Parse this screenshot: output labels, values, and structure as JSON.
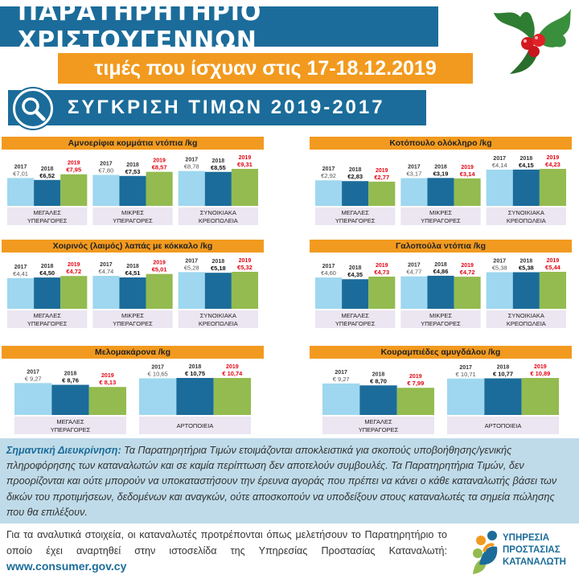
{
  "header": {
    "title": "ΠΑΡΑΤΗΡΗΤΗΡΙΟ ΧΡΙΣΤΟΥΓΕΝΝΩΝ",
    "date": "τιμές που ίσχυαν στις 17-18.12.2019",
    "compare": "ΣΥΓΚΡΙΣΗ ΤΙΜΩΝ 2019-2017"
  },
  "colors": {
    "y2017": "#9ed7ef",
    "y2018": "#1b6c9a",
    "y2019": "#93bb4f",
    "red": "#e30613",
    "orange": "#f29a1f",
    "blue": "#1b6c9a"
  },
  "chart_data": [
    {
      "type": "bar",
      "title": "Αμνοερίφια κομμάτια ντόπια /kg",
      "years": [
        "2017",
        "2018",
        "2019"
      ],
      "groups": [
        {
          "label1": "ΜΕΓΑΛΕΣ",
          "label2": "ΥΠΕΡΑΓΟΡΕΣ",
          "values": [
            7.01,
            6.52,
            7.95
          ],
          "labels": [
            "€7,01",
            "€6,52",
            "€7,95"
          ]
        },
        {
          "label1": "ΜΙΚΡΕΣ",
          "label2": "ΥΠΕΡΑΓΟΡΕΣ",
          "values": [
            7.8,
            7.53,
            8.57
          ],
          "labels": [
            "€7,80",
            "€7,53",
            "€8,57"
          ]
        },
        {
          "label1": "ΣΥΝΟΙΚΙΑΚΑ",
          "label2": "ΚΡΕΟΠΩΛΕΙΑ",
          "values": [
            8.78,
            8.55,
            9.31
          ],
          "labels": [
            "€8,78",
            "€8,55",
            "€9,31"
          ]
        }
      ]
    },
    {
      "type": "bar",
      "title": "Κοτόπουλο ολόκληρο /kg",
      "years": [
        "2017",
        "2018",
        "2019"
      ],
      "groups": [
        {
          "label1": "ΜΕΓΑΛΕΣ",
          "label2": "ΥΠΕΡΑΓΟΡΕΣ",
          "values": [
            2.92,
            2.83,
            2.77
          ],
          "labels": [
            "€2,92",
            "€2,83",
            "€2,77"
          ]
        },
        {
          "label1": "ΜΙΚΡΕΣ",
          "label2": "ΥΠΕΡΑΓΟΡΕΣ",
          "values": [
            3.17,
            3.19,
            3.14
          ],
          "labels": [
            "€3,17",
            "€3,19",
            "€3,14"
          ]
        },
        {
          "label1": "ΣΥΝΟΙΚΙΑΚΑ",
          "label2": "ΚΡΕΟΠΩΛΕΙΑ",
          "values": [
            4.14,
            4.15,
            4.23
          ],
          "labels": [
            "€4,14",
            "€4,15",
            "€4,23"
          ]
        }
      ]
    },
    {
      "type": "bar",
      "title": "Χοιρινός (λαιμός) λαπάς με κόκκαλο /kg",
      "years": [
        "2017",
        "2018",
        "2019"
      ],
      "groups": [
        {
          "label1": "ΜΕΓΑΛΕΣ",
          "label2": "ΥΠΕΡΑΓΟΡΕΣ",
          "values": [
            4.41,
            4.5,
            4.72
          ],
          "labels": [
            "€4,41",
            "€4,50",
            "€4,72"
          ]
        },
        {
          "label1": "ΜΙΚΡΕΣ",
          "label2": "ΥΠΕΡΑΓΟΡΕΣ",
          "values": [
            4.74,
            4.51,
            5.01
          ],
          "labels": [
            "€4,74",
            "€4,51",
            "€5,01"
          ]
        },
        {
          "label1": "ΣΥΝΟΙΚΙΑΚΑ",
          "label2": "ΚΡΕΟΠΩΛΕΙΑ",
          "values": [
            5.28,
            5.18,
            5.32
          ],
          "labels": [
            "€5,28",
            "€5,18",
            "€5,32"
          ]
        }
      ]
    },
    {
      "type": "bar",
      "title": "Γαλοπούλα ντόπια /kg",
      "years": [
        "2017",
        "2018",
        "2019"
      ],
      "groups": [
        {
          "label1": "ΜΕΓΑΛΕΣ",
          "label2": "ΥΠΕΡΑΓΟΡΕΣ",
          "values": [
            4.6,
            4.35,
            4.73
          ],
          "labels": [
            "€4,60",
            "€4,35",
            "€4,73"
          ]
        },
        {
          "label1": "ΜΙΚΡΕΣ",
          "label2": "ΥΠΕΡΑΓΟΡΕΣ",
          "values": [
            4.77,
            4.86,
            4.72
          ],
          "labels": [
            "€4,77",
            "€4,86",
            "€4,72"
          ]
        },
        {
          "label1": "ΣΥΝΟΙΚΙΑΚΑ",
          "label2": "ΚΡΕΟΠΩΛΕΙΑ",
          "values": [
            5.38,
            5.38,
            5.44
          ],
          "labels": [
            "€5,38",
            "€5,38",
            "€5,44"
          ]
        }
      ]
    },
    {
      "type": "bar",
      "title": "Μελομακάρονα /kg",
      "years": [
        "2017",
        "2018",
        "2019"
      ],
      "groups": [
        {
          "label1": "ΜΕΓΑΛΕΣ",
          "label2": "ΥΠΕΡΑΓΟΡΕΣ",
          "values": [
            9.27,
            8.76,
            8.13
          ],
          "labels": [
            "€ 9,27",
            "€ 8,76",
            "€ 8,13"
          ]
        },
        {
          "label1": "ΑΡΤΟΠΟΙΕΙΑ",
          "label2": "",
          "values": [
            10.65,
            10.75,
            10.74
          ],
          "labels": [
            "€ 10,65",
            "€ 10,75",
            "€ 10,74"
          ]
        }
      ]
    },
    {
      "type": "bar",
      "title": "Κουραμπιέδες αμυγδάλου /kg",
      "years": [
        "2017",
        "2018",
        "2019"
      ],
      "groups": [
        {
          "label1": "ΜΕΓΑΛΕΣ",
          "label2": "ΥΠΕΡΑΓΟΡΕΣ",
          "values": [
            9.27,
            8.7,
            7.99
          ],
          "labels": [
            "€ 9,27",
            "€ 8,70",
            "€ 7,99"
          ]
        },
        {
          "label1": "ΑΡΤΟΠΟΙΕΙΑ",
          "label2": "",
          "values": [
            10.71,
            10.77,
            10.89
          ],
          "labels": [
            "€ 10,71",
            "€ 10,77",
            "€ 10,89"
          ]
        }
      ]
    }
  ],
  "note": {
    "label": "Σημαντική Διευκρίνηση:",
    "text": "Τα Παρατηρητήρια Τιμών ετοιμάζονται αποκλειστικά για σκοπούς υποβοήθησης/γενικής πληροφόρησης των καταναλωτών και σε καμία περίπτωση δεν αποτελούν συμβουλές. Τα Παρατηρητήρια Τιμών, δεν προορίζονται και ούτε μπορούν να υποκαταστήσουν την έρευνα αγοράς που πρέπει να κάνει ο κάθε καταναλωτής βάσει των δικών του προτιμήσεων, δεδομένων και αναγκών, ούτε αποσκοπούν να υποδείξουν στους καταναλωτές τα σημεία πώλησης που θα επιλέξουν."
  },
  "footer": {
    "text": "Για τα αναλυτικά στοιχεία, οι καταναλωτές προτρέπονται όπως μελετήσουν το Παρατηρητήριο το οποίο έχει αναρτηθεί στην ιστοσελίδα της Υπηρεσίας Προστασίας Καταναλωτή:",
    "url": "www.consumer.gov.cy"
  },
  "logo": {
    "line1": "ΥΠΗΡΕΣΙΑ",
    "line2": "ΠΡΟΣΤΑΣΙΑΣ",
    "line3": "ΚΑΤΑΝΑΛΩΤΗ"
  }
}
